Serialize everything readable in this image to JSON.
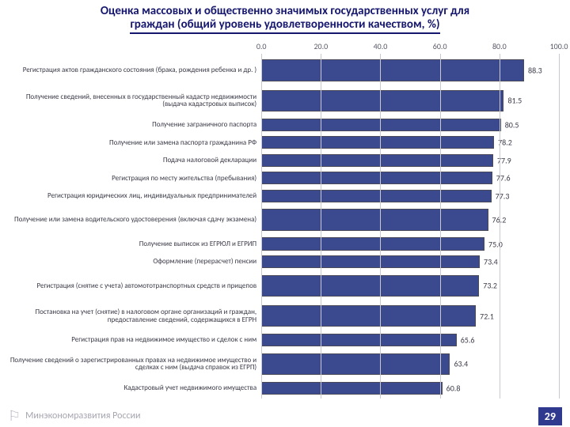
{
  "title_line1": "Оценка массовых и общественно значимых государственных услуг для",
  "title_line2": "граждан (общий уровень удовлетворенности качеством, %)",
  "title_color": "#15166d",
  "title_fontsize": 15,
  "footer": {
    "brand": "Минэкономразвития России",
    "page": "29",
    "page_bg": "#2f3a8f"
  },
  "chart": {
    "type": "bar",
    "orientation": "horizontal",
    "bar_color": "#3b4a8f",
    "bar_border": "#4a4a58",
    "grid_color": "#c9c9d2",
    "background_color": "#ffffff",
    "label_fontsize": 9,
    "value_fontsize": 10,
    "tick_fontsize": 10,
    "xlim": [
      0,
      100
    ],
    "xtick_step": 20,
    "xticks": [
      "0.0",
      "20.0",
      "40.0",
      "60.0",
      "80.0",
      "100.0"
    ],
    "label_width_pct": 46,
    "items": [
      {
        "label": "Регистрация актов гражданского состояния (брака, рождения ребенка и др. )",
        "value": 88.3,
        "tall": true
      },
      {
        "label": "Получение сведений, внесенных в государственный кадастр недвижимости (выдача кадастровых выписок)",
        "value": 81.5,
        "tall": true
      },
      {
        "label": "Получение заграничного паспорта",
        "value": 80.5
      },
      {
        "label": "Получение или замена паспорта гражданина РФ",
        "value": 78.2
      },
      {
        "label": "Подача налоговой декларации",
        "value": 77.9
      },
      {
        "label": "Регистрация по месту жительства (пребывания)",
        "value": 77.6
      },
      {
        "label": "Регистрация юридических лиц, индивидуальных предпринимателей",
        "value": 77.3
      },
      {
        "label": "Получение или замена водительского удостоверения (включая сдачу экзамена)",
        "value": 76.2,
        "tall": true
      },
      {
        "label": "Получение выписок из ЕГРЮЛ и ЕГРИП",
        "value": 75.0
      },
      {
        "label": "Оформление (перерасчет) пенсии",
        "value": 73.4
      },
      {
        "label": "Регистрация (снятие с учета) автомототранспортных средств и прицепов",
        "value": 73.2,
        "tall": true
      },
      {
        "label": "Постановка на учет (снятие) в налоговом органе организаций и граждан, предоставление сведений, содержащихся в ЕГРН",
        "value": 72.1,
        "tall": true
      },
      {
        "label": "Регистрация прав на недвижимое имущество и сделок с ним",
        "value": 65.6
      },
      {
        "label": "Получение сведений о зарегистрированных правах на недвижимое имущество и сделках с ним (выдача справок из ЕГРП)",
        "value": 63.4,
        "tall": true
      },
      {
        "label": "Кадастровый учет недвижимого имущества",
        "value": 60.8
      }
    ]
  }
}
